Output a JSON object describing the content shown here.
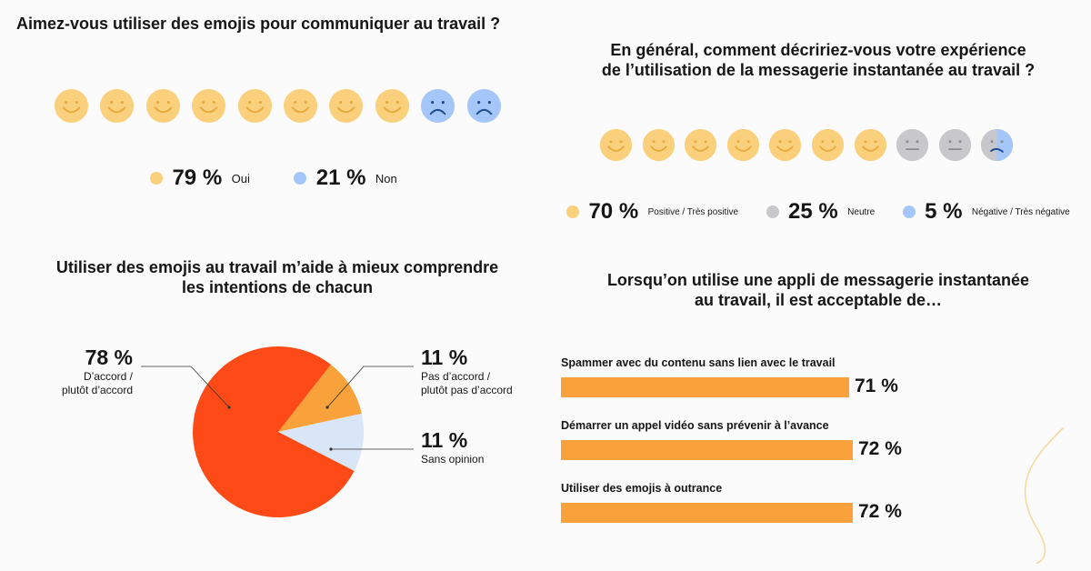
{
  "colors": {
    "yellow": "#fbd07d",
    "blue": "#a4c6f8",
    "grey": "#c7c7cc",
    "orange": "#f9a13a",
    "red": "#fd4a16",
    "lightblue": "#d9e6f7",
    "pieYellow": "#f9a13a"
  },
  "q1": {
    "title": "Aimez-vous utiliser des emojis pour communiquer au travail ?",
    "faces": [
      "happy",
      "happy",
      "happy",
      "happy",
      "happy",
      "happy",
      "happy",
      "happy",
      "sad",
      "sad"
    ],
    "legend": [
      {
        "pct": "79 %",
        "label": "Oui",
        "color": "#fbd07d"
      },
      {
        "pct": "21 %",
        "label": "Non",
        "color": "#a4c6f8"
      }
    ]
  },
  "q2": {
    "title_line1": "En général, comment décririez-vous votre expérience",
    "title_line2": "de l’utilisation de la messagerie instantanée au travail ?",
    "faces": [
      "happy",
      "happy",
      "happy",
      "happy",
      "happy",
      "happy",
      "happy",
      "neutral",
      "neutral",
      "mixed"
    ],
    "legend": [
      {
        "pct": "70 %",
        "label": "Positive / Très positive",
        "color": "#fbd07d"
      },
      {
        "pct": "25 %",
        "label": "Neutre",
        "color": "#c7c7cc"
      },
      {
        "pct": "5 %",
        "label": "Négative / Très négative",
        "color": "#a4c6f8"
      }
    ]
  },
  "q3": {
    "title_line1": "Utiliser des emojis au travail m’aide à mieux comprendre",
    "title_line2": "les intentions de chacun"
  },
  "q4": {
    "title_line1": "Lorsqu’on utilise une appli de messagerie instantanée",
    "title_line2": "au travail, il est acceptable de…"
  },
  "chart_data": [
    {
      "type": "pie",
      "title": "Utiliser des emojis au travail m’aide à mieux comprendre les intentions de chacun",
      "slices": [
        {
          "label_line1": "D’accord /",
          "label_line2": "plutôt d’accord",
          "value": 78,
          "display": "78 %",
          "color": "#fd4a16"
        },
        {
          "label_line1": "Pas d’accord /",
          "label_line2": "plutôt pas d’accord",
          "value": 11,
          "display": "11 %",
          "color": "#f9a13a"
        },
        {
          "label_line1": "Sans opinion",
          "label_line2": "",
          "value": 11,
          "display": "11 %",
          "color": "#d9e6f7"
        }
      ]
    },
    {
      "type": "bar",
      "orientation": "horizontal",
      "title": "Lorsqu’on utilise une appli de messagerie instantanée au travail, il est acceptable de…",
      "categories": [
        "Spammer avec du contenu sans lien avec le travail",
        "Démarrer un appel vidéo sans prévenir à l’avance",
        "Utiliser des emojis à outrance"
      ],
      "values": [
        71,
        72,
        72
      ],
      "labels": [
        "71 %",
        "72 %",
        "72 %"
      ],
      "color": "#f9a13a"
    }
  ]
}
